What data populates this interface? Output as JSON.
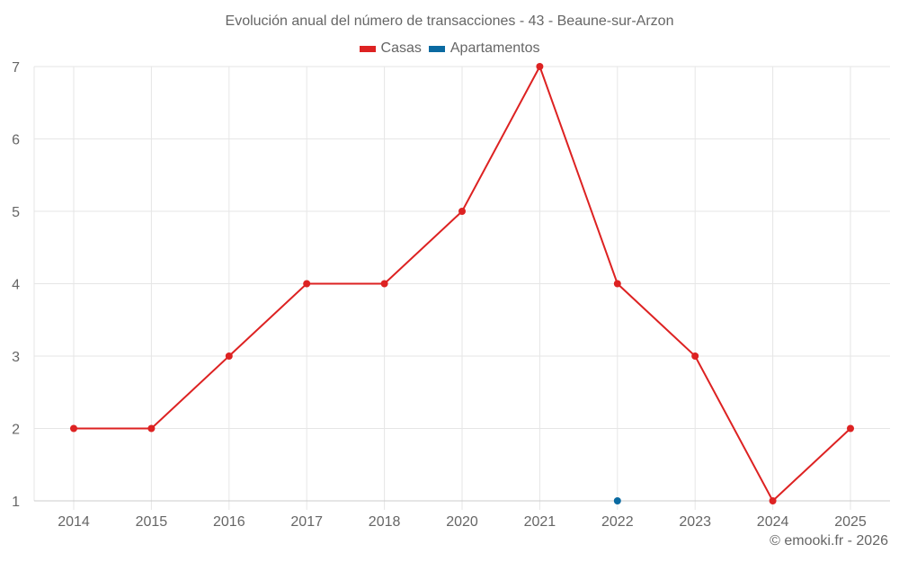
{
  "header": {
    "title": "Evolución anual del número de transacciones - 43 - Beaune-sur-Arzon"
  },
  "legend": [
    {
      "label": "Casas",
      "color": "#dd2222"
    },
    {
      "label": "Apartamentos",
      "color": "#0a6aa1"
    }
  ],
  "footer": {
    "credit": "© emooki.fr - 2026"
  },
  "chart_data": {
    "type": "line",
    "title": "Evolución anual del número de transacciones - 43 - Beaune-sur-Arzon",
    "xlabel": "",
    "ylabel": "",
    "categories": [
      "2014",
      "2015",
      "2016",
      "2017",
      "2018",
      "2020",
      "2021",
      "2022",
      "2023",
      "2024",
      "2025"
    ],
    "series": [
      {
        "name": "Casas",
        "color": "#dd2222",
        "values": [
          2,
          2,
          3,
          4,
          4,
          5,
          7,
          4,
          3,
          1,
          2
        ]
      },
      {
        "name": "Apartamentos",
        "color": "#0a6aa1",
        "values": [
          null,
          null,
          null,
          null,
          null,
          null,
          null,
          1,
          null,
          null,
          null
        ]
      }
    ],
    "yticks": [
      1,
      2,
      3,
      4,
      5,
      6,
      7
    ],
    "ylim": [
      1,
      7
    ],
    "grid": true,
    "legend_position": "top"
  }
}
